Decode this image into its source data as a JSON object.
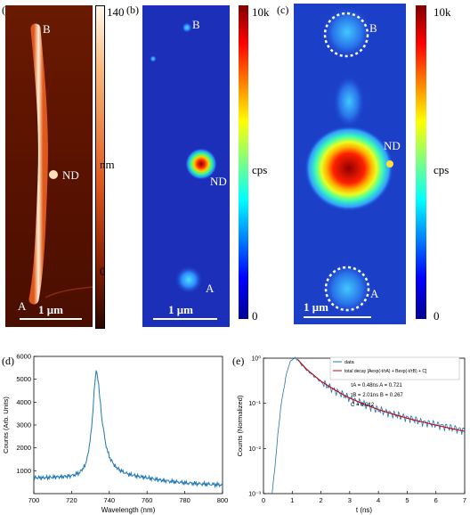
{
  "panels": {
    "a": {
      "tag": "(a)",
      "labels": [
        "B",
        "ND",
        "A"
      ],
      "scalebar": "1 μm",
      "colorbar": {
        "max": "140",
        "unit": "nm",
        "min": "0"
      }
    },
    "b": {
      "tag": "(b)",
      "labels": [
        "B",
        "ND",
        "A"
      ],
      "scalebar": "1 μm",
      "colorbar": {
        "max": "10k",
        "unit": "cps",
        "min": "0"
      }
    },
    "c": {
      "tag": "(c)",
      "labels": [
        "B",
        "ND",
        "A"
      ],
      "scalebar": "1 μm",
      "colorbar": {
        "max": "10k",
        "unit": "cps",
        "min": "0"
      }
    },
    "d": {
      "tag": "(d)"
    },
    "e": {
      "tag": "(e)"
    }
  },
  "colors": {
    "afm_high": "#fff0d8",
    "afm_mid": "#e0581a",
    "afm_low": "#4a0e00",
    "jet_low": "#00008f",
    "jet_mid": "#00ff80",
    "jet_high": "#800000",
    "trace_blue": "#1f77b4",
    "fit_red": "#cc0000"
  },
  "chart_data": [
    {
      "type": "line",
      "panel": "d",
      "xlabel": "Wavelength (nm)",
      "ylabel": "Counts (Arb. Units)",
      "xlim": [
        700,
        800
      ],
      "ylim": [
        0,
        6000
      ],
      "xticks": [
        700,
        720,
        740,
        760,
        780,
        800
      ],
      "yticks": [
        1000,
        2000,
        3000,
        4000,
        5000,
        6000
      ],
      "x": [
        700,
        705,
        710,
        715,
        720,
        724,
        727,
        729,
        731,
        732,
        733,
        734,
        735,
        736,
        738,
        740,
        743,
        746,
        750,
        755,
        760,
        765,
        770,
        780,
        790,
        800
      ],
      "values": [
        700,
        690,
        720,
        740,
        780,
        900,
        1200,
        1800,
        3200,
        4500,
        5400,
        5000,
        4200,
        3300,
        2200,
        1600,
        1200,
        1000,
        850,
        760,
        690,
        620,
        560,
        470,
        420,
        380
      ]
    },
    {
      "type": "line",
      "panel": "e",
      "xlabel": "t (ns)",
      "ylabel": "Counts (Normalized)",
      "yscale": "log",
      "xlim": [
        0,
        7
      ],
      "ylim": [
        0.001,
        1
      ],
      "xticks": [
        0,
        1,
        2,
        3,
        4,
        5,
        6,
        7
      ],
      "ytick_labels": [
        "10⁻³",
        "10⁻²",
        "10⁻¹",
        "10⁰"
      ],
      "legend": {
        "position": "top-right",
        "entries": [
          "data",
          "total decay [Aexp(-t/τA) + Bexp(-t/τB) + C]"
        ],
        "annotations": [
          "τA = 0.48ns   A = 0.721",
          "τB = 2.01ns   B = 0.267",
          "C = 0.012"
        ]
      },
      "fit_params": {
        "tauA": 0.48,
        "A": 0.721,
        "tauB": 2.01,
        "B": 0.267,
        "C": 0.012
      },
      "series": [
        {
          "name": "data",
          "x": [
            0.3,
            0.4,
            0.5,
            0.6,
            0.7,
            0.8,
            0.9,
            1.0,
            1.1,
            1.2,
            1.3,
            1.5,
            2.0,
            2.5,
            3.0,
            3.5,
            4.0,
            4.5,
            5.0,
            5.5,
            6.0,
            6.5,
            7.0
          ],
          "values": [
            0.001,
            0.004,
            0.02,
            0.08,
            0.2,
            0.45,
            0.75,
            0.95,
            1.0,
            0.92,
            0.75,
            0.55,
            0.3,
            0.19,
            0.13,
            0.095,
            0.072,
            0.058,
            0.048,
            0.039,
            0.034,
            0.029,
            0.025
          ]
        },
        {
          "name": "total decay [Aexp(-t/τA) + Bexp(-t/τB) + C]",
          "x": [
            1.2,
            1.5,
            2.0,
            2.5,
            3.0,
            3.5,
            4.0,
            4.5,
            5.0,
            5.5,
            6.0,
            6.5,
            7.0
          ],
          "values": [
            0.92,
            0.57,
            0.31,
            0.195,
            0.13,
            0.096,
            0.073,
            0.058,
            0.047,
            0.039,
            0.033,
            0.028,
            0.024
          ]
        }
      ]
    }
  ]
}
